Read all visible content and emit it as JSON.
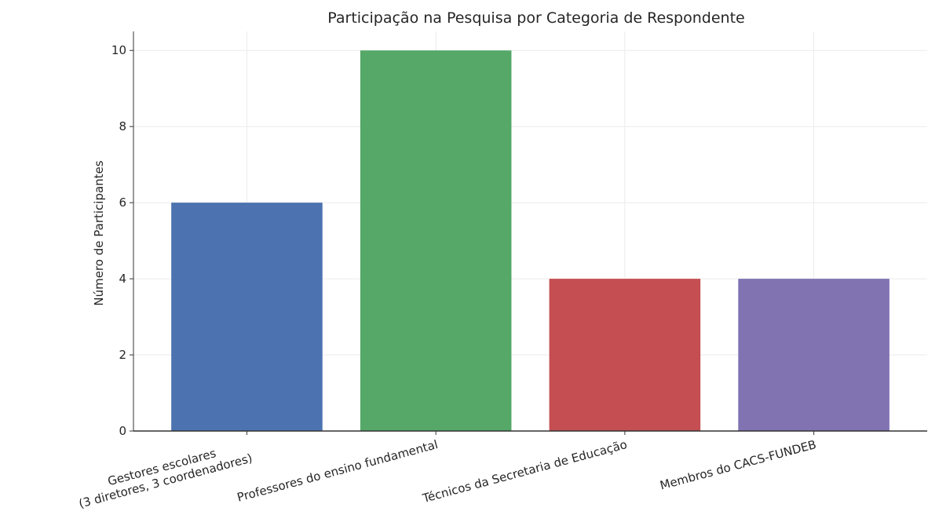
{
  "chart_data": {
    "type": "bar",
    "title": "Participação na Pesquisa por Categoria de Respondente",
    "ylabel": "Número de Participantes",
    "categories": [
      "Gestores escolares\n(3 diretores, 3 coordenadores)",
      "Professores do ensino fundamental",
      "Técnicos da Secretaria de Educação",
      "Membros do CACS-FUNDEB"
    ],
    "values": [
      6,
      10,
      4,
      4
    ],
    "colors": [
      "#4c72b0",
      "#55a868",
      "#c44e52",
      "#8172b2"
    ],
    "ylim": [
      0,
      10.5
    ],
    "yticks": [
      0,
      2,
      4,
      6,
      8,
      10
    ],
    "grid": true
  }
}
